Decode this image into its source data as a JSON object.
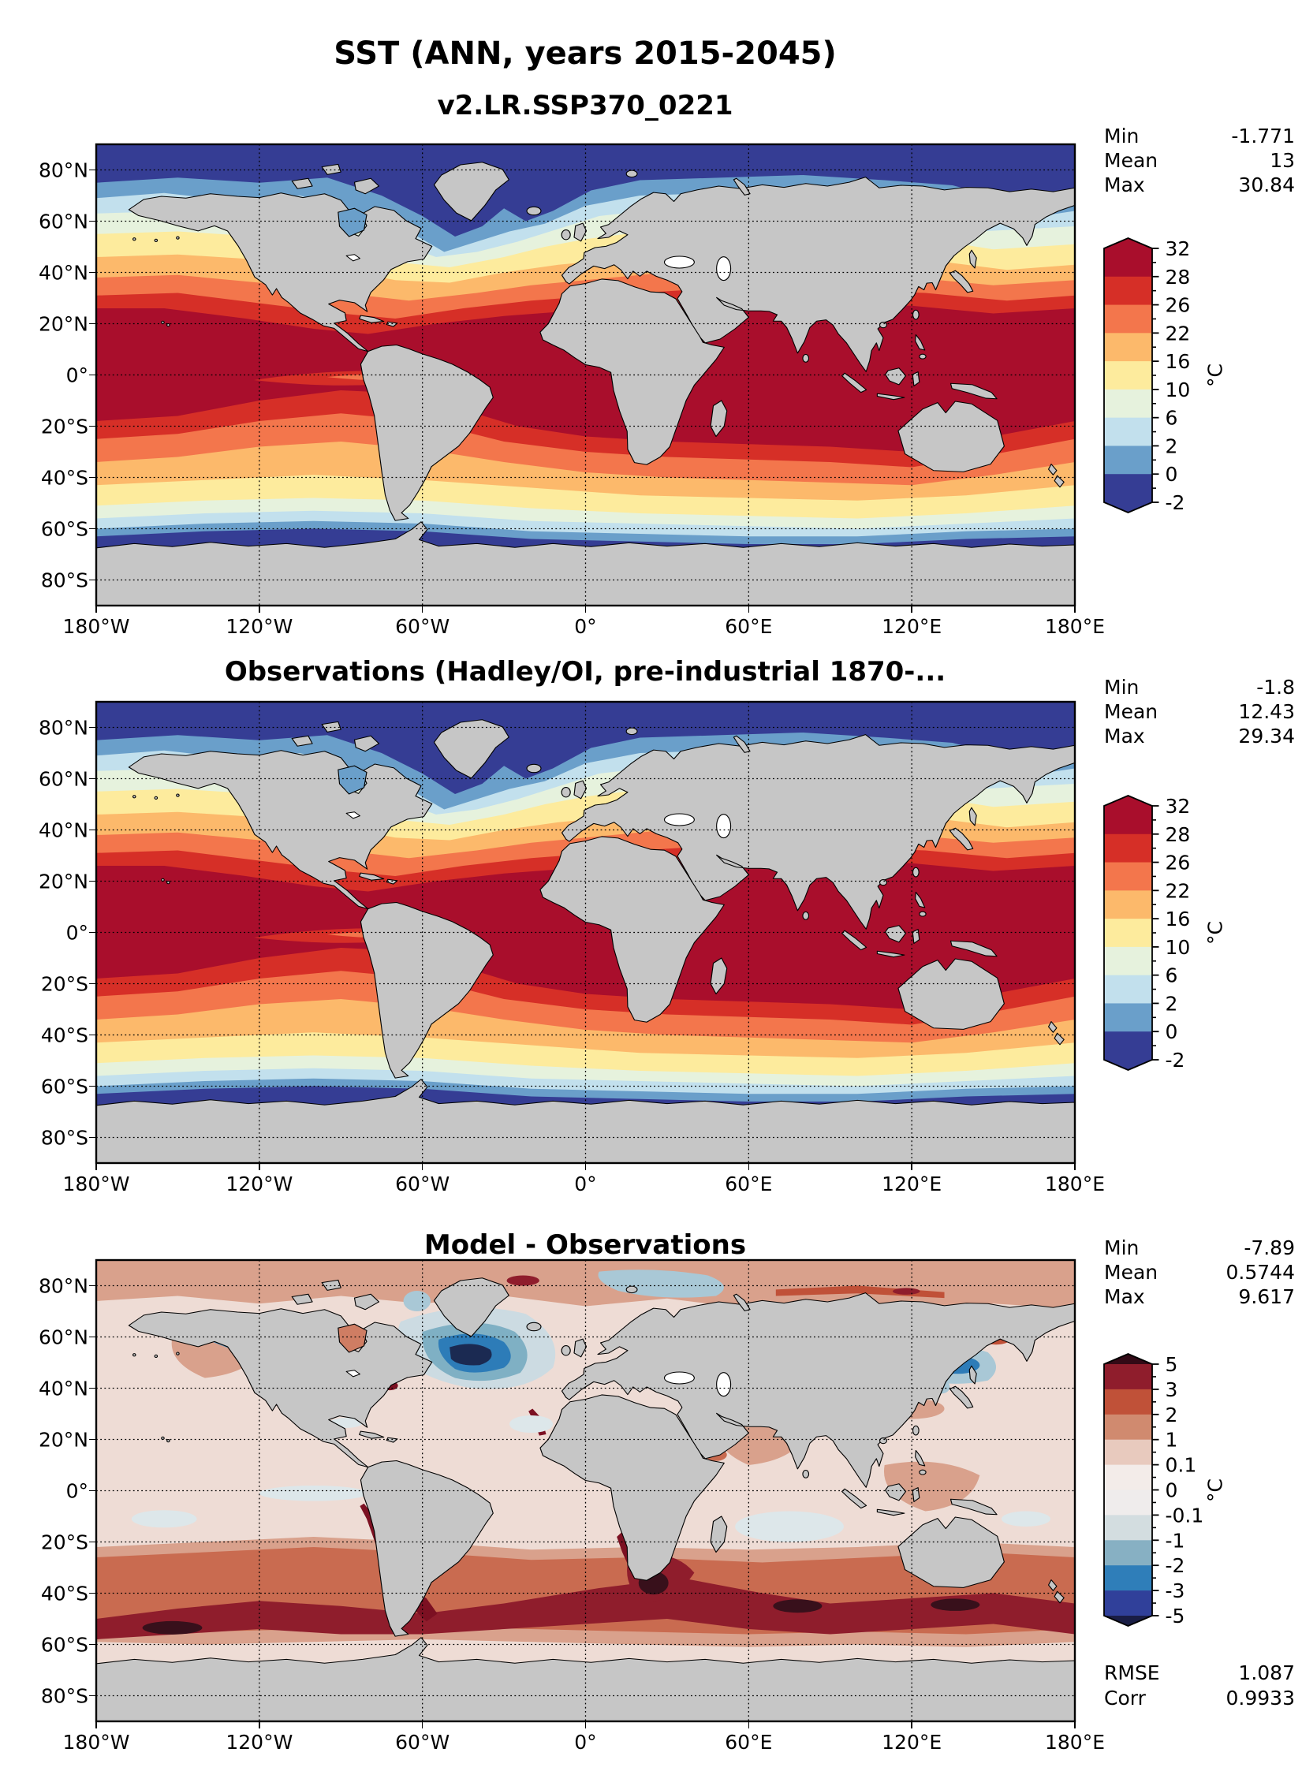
{
  "figure_title": "SST (ANN, years 2015-2045)",
  "panels": [
    {
      "title": "v2.LR.SSP370_0221",
      "stats": [
        {
          "label": "Min",
          "value": "-1.771"
        },
        {
          "label": "Mean",
          "value": "13"
        },
        {
          "label": "Max",
          "value": "30.84"
        }
      ]
    },
    {
      "title": "Observations (Hadley/OI, pre-industrial 1870-...",
      "stats": [
        {
          "label": "Min",
          "value": "-1.8"
        },
        {
          "label": "Mean",
          "value": "12.43"
        },
        {
          "label": "Max",
          "value": "29.34"
        }
      ]
    },
    {
      "title": "Model - Observations",
      "stats": [
        {
          "label": "Min",
          "value": "-7.89"
        },
        {
          "label": "Mean",
          "value": "0.5744"
        },
        {
          "label": "Max",
          "value": "9.617"
        }
      ],
      "extra": [
        {
          "label": "RMSE",
          "value": "1.087"
        },
        {
          "label": "Corr",
          "value": "0.9933"
        }
      ]
    }
  ],
  "axes": {
    "lat_labels": [
      "80°N",
      "60°N",
      "40°N",
      "20°N",
      "0°",
      "20°S",
      "40°S",
      "60°S",
      "80°S"
    ],
    "lon_labels": [
      "180°W",
      "120°W",
      "60°W",
      "0°",
      "60°E",
      "120°E",
      "180°E"
    ]
  },
  "colorbars": [
    {
      "unit": "°C",
      "tick_labels": [
        "32",
        "28",
        "26",
        "22",
        "16",
        "10",
        "6",
        "2",
        "0",
        "-2"
      ],
      "colors": [
        "#a90e2c",
        "#d62f27",
        "#f3764c",
        "#fcb96b",
        "#fdeb9d",
        "#e6f2dd",
        "#c2e0ed",
        "#6a9fca",
        "#353d94"
      ],
      "arrow_high": "#a90e2c",
      "arrow_low": "#353d94"
    },
    {
      "unit": "°C",
      "tick_labels": [
        "32",
        "28",
        "26",
        "22",
        "16",
        "10",
        "6",
        "2",
        "0",
        "-2"
      ],
      "colors": [
        "#a90e2c",
        "#d62f27",
        "#f3764c",
        "#fcb96b",
        "#fdeb9d",
        "#e6f2dd",
        "#c2e0ed",
        "#6a9fca",
        "#353d94"
      ],
      "arrow_high": "#a90e2c",
      "arrow_low": "#353d94"
    },
    {
      "unit": "°C",
      "tick_labels": [
        "5",
        "3",
        "2",
        "1",
        "0.1",
        "0",
        "-0.1",
        "-1",
        "-2",
        "-3",
        "-5"
      ],
      "colors": [
        "#8f1d2c",
        "#c05138",
        "#d08a6f",
        "#e8cabe",
        "#f3ece9",
        "#efecec",
        "#d3dde0",
        "#87b0c3",
        "#2f7eb9",
        "#30409a"
      ],
      "arrow_high": "#330a16",
      "arrow_low": "#191d45"
    }
  ],
  "chart_data": [
    {
      "type": "heatmap",
      "subtype": "filled-contour-global-map",
      "title": "v2.LR.SSP370_0221",
      "variable": "SST",
      "season": "ANN",
      "years": "2015-2045",
      "units": "°C",
      "stats": {
        "min": -1.771,
        "mean": 13,
        "max": 30.84
      },
      "contour_levels": [
        -2,
        0,
        2,
        6,
        10,
        16,
        22,
        26,
        28,
        32
      ],
      "palette": [
        "#353d94",
        "#6a9fca",
        "#c2e0ed",
        "#e6f2dd",
        "#fdeb9d",
        "#fcb96b",
        "#f3764c",
        "#d62f27",
        "#a90e2c"
      ],
      "lat_ticks": [
        80,
        60,
        40,
        20,
        0,
        -20,
        -40,
        -60,
        -80
      ],
      "lon_ticks": [
        -180,
        -120,
        -60,
        0,
        60,
        120,
        180
      ],
      "grid": true,
      "land_color": "#c6c6c6"
    },
    {
      "type": "heatmap",
      "subtype": "filled-contour-global-map",
      "title": "Observations (Hadley/OI, pre-industrial 1870-...",
      "variable": "SST",
      "units": "°C",
      "stats": {
        "min": -1.8,
        "mean": 12.43,
        "max": 29.34
      },
      "contour_levels": [
        -2,
        0,
        2,
        6,
        10,
        16,
        22,
        26,
        28,
        32
      ],
      "palette": [
        "#353d94",
        "#6a9fca",
        "#c2e0ed",
        "#e6f2dd",
        "#fdeb9d",
        "#fcb96b",
        "#f3764c",
        "#d62f27",
        "#a90e2c"
      ],
      "lat_ticks": [
        80,
        60,
        40,
        20,
        0,
        -20,
        -40,
        -60,
        -80
      ],
      "lon_ticks": [
        -180,
        -120,
        -60,
        0,
        60,
        120,
        180
      ],
      "grid": true,
      "land_color": "#c6c6c6"
    },
    {
      "type": "heatmap",
      "subtype": "filled-contour-global-map-difference",
      "title": "Model - Observations",
      "units": "°C",
      "stats": {
        "min": -7.89,
        "mean": 0.5744,
        "max": 9.617,
        "rmse": 1.087,
        "corr": 0.9933
      },
      "contour_levels": [
        -5,
        -3,
        -2,
        -1,
        -0.1,
        0,
        0.1,
        1,
        2,
        3,
        5
      ],
      "palette": [
        "#30409a",
        "#2f7eb9",
        "#87b0c3",
        "#d3dde0",
        "#efecec",
        "#f3ece9",
        "#e8cabe",
        "#d08a6f",
        "#c05138",
        "#8f1d2c"
      ],
      "lat_ticks": [
        80,
        60,
        40,
        20,
        0,
        -20,
        -40,
        -60,
        -80
      ],
      "lon_ticks": [
        -180,
        -120,
        -60,
        0,
        60,
        120,
        180
      ],
      "grid": true,
      "land_color": "#c6c6c6"
    }
  ]
}
